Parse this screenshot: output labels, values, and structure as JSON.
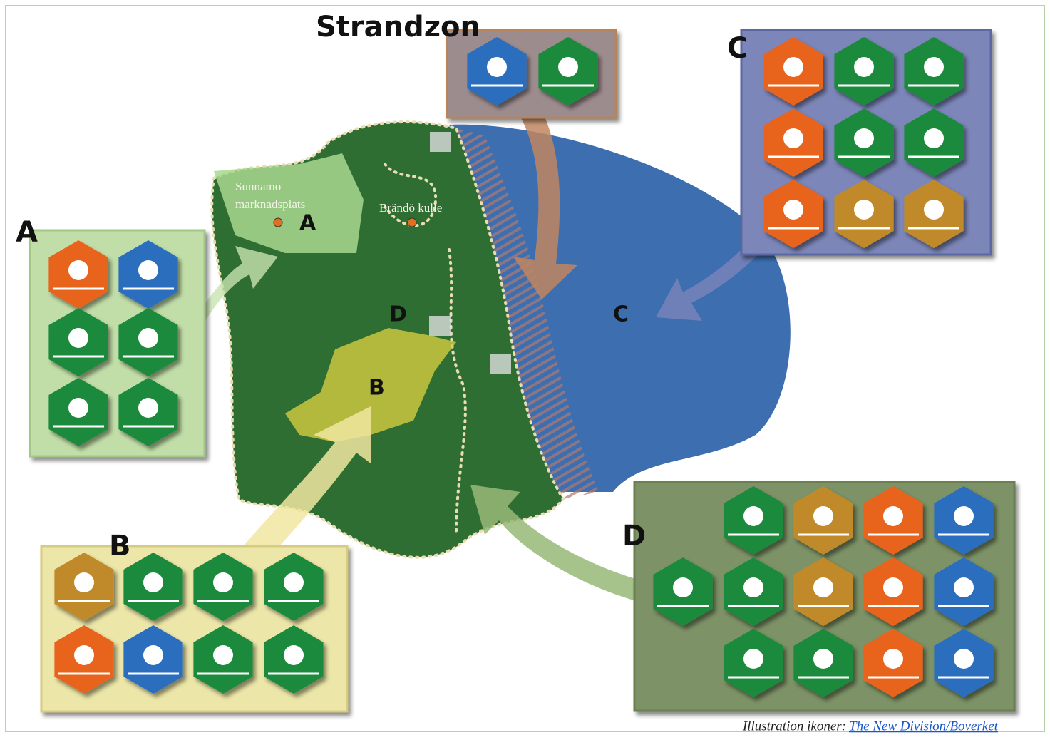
{
  "zones": [
    {
      "label": "Strandzon"
    },
    {
      "label": "C"
    },
    {
      "label": "A"
    },
    {
      "label": "B"
    },
    {
      "label": "D"
    }
  ],
  "map": {
    "places": [
      {
        "label": "Sunnamo"
      },
      {
        "label": "marknadsplats"
      },
      {
        "label": "Brändö kulle"
      }
    ],
    "zone_labels": [
      "A",
      "B",
      "C",
      "D"
    ]
  },
  "credit": {
    "text": "Illustration ikoner:",
    "link": "The New Division/Boverket"
  }
}
